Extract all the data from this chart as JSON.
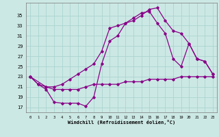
{
  "xlabel": "Windchill (Refroidissement éolien,°C)",
  "background_color": "#cce8e4",
  "grid_color": "#aad4d0",
  "line_color": "#880088",
  "xlim": [
    -0.5,
    23.5
  ],
  "ylim": [
    16.0,
    37.5
  ],
  "xticks": [
    0,
    1,
    2,
    3,
    4,
    5,
    6,
    7,
    8,
    9,
    10,
    11,
    12,
    13,
    14,
    15,
    16,
    17,
    18,
    19,
    20,
    21,
    22,
    23
  ],
  "yticks": [
    17,
    19,
    21,
    23,
    25,
    27,
    29,
    31,
    33,
    35
  ],
  "line1_x": [
    0,
    1,
    2,
    3,
    4,
    5,
    6,
    7,
    8,
    9,
    10,
    11,
    12,
    13,
    14,
    15,
    16,
    17,
    18,
    19,
    20,
    21,
    22,
    23
  ],
  "line1_y": [
    23,
    21.5,
    21,
    20.5,
    20.5,
    20.5,
    20.5,
    21,
    21.5,
    21.5,
    21.5,
    21.5,
    22,
    22,
    22,
    22.5,
    22.5,
    22.5,
    22.5,
    23,
    23,
    23,
    23,
    23
  ],
  "line2_x": [
    0,
    1,
    2,
    3,
    4,
    5,
    6,
    7,
    8,
    9,
    10,
    11,
    12,
    13,
    14,
    15,
    16,
    17,
    18,
    19,
    20,
    21,
    22,
    23
  ],
  "line2_y": [
    23,
    21.5,
    20.5,
    18,
    17.8,
    17.8,
    17.8,
    17.2,
    19.0,
    25.5,
    30.0,
    31.0,
    33.5,
    34.0,
    35.0,
    36.2,
    36.5,
    34.0,
    32.0,
    31.5,
    29.5,
    26.5,
    26.0,
    23.5
  ],
  "line3_x": [
    0,
    2,
    3,
    4,
    5,
    6,
    7,
    8,
    9,
    10,
    11,
    12,
    13,
    14,
    15,
    16,
    17,
    18,
    19,
    20,
    21,
    22,
    23
  ],
  "line3_y": [
    23,
    21.0,
    21.0,
    21.5,
    22.5,
    23.5,
    24.5,
    25.5,
    28.0,
    32.5,
    33.0,
    33.5,
    34.5,
    35.5,
    35.8,
    33.5,
    31.5,
    26.5,
    25.0,
    29.5,
    26.5,
    26.0,
    23.5
  ]
}
